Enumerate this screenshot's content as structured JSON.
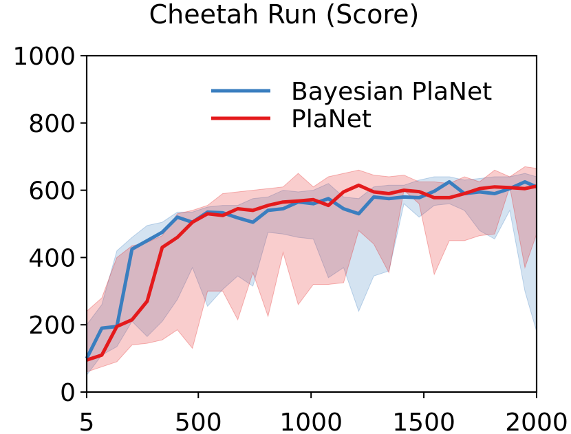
{
  "chart_data": {
    "type": "line",
    "title": "Cheetah Run (Score)",
    "xlabel": "",
    "ylabel": "",
    "xlim": [
      5,
      2000
    ],
    "ylim": [
      0,
      1000
    ],
    "x_ticks": [
      {
        "value": 5,
        "label": "5"
      },
      {
        "value": 500,
        "label": "500"
      },
      {
        "value": 1000,
        "label": "1000"
      },
      {
        "value": 1500,
        "label": "1500"
      },
      {
        "value": 2000,
        "label": "2000"
      }
    ],
    "y_ticks": [
      {
        "value": 0,
        "label": "0"
      },
      {
        "value": 200,
        "label": "200"
      },
      {
        "value": 400,
        "label": "400"
      },
      {
        "value": 600,
        "label": "600"
      },
      {
        "value": 800,
        "label": "800"
      },
      {
        "value": 1000,
        "label": "1000"
      }
    ],
    "grid": false,
    "legend_position": "top-right",
    "x": [
      5,
      72,
      139,
      206,
      273,
      340,
      407,
      474,
      541,
      608,
      675,
      742,
      809,
      876,
      943,
      1010,
      1077,
      1144,
      1211,
      1278,
      1345,
      1412,
      1479,
      1546,
      1613,
      1680,
      1747,
      1814,
      1881,
      1948,
      2000
    ],
    "series": [
      {
        "name": "Bayesian PlaNet",
        "color": "#3a7ebf",
        "values": [
          100,
          190,
          195,
          425,
          450,
          475,
          520,
          505,
          535,
          533,
          518,
          505,
          540,
          545,
          565,
          560,
          575,
          545,
          530,
          580,
          575,
          580,
          578,
          597,
          625,
          590,
          595,
          590,
          605,
          625,
          610
        ],
        "lower": [
          50,
          110,
          135,
          210,
          165,
          210,
          275,
          370,
          255,
          305,
          345,
          315,
          475,
          470,
          460,
          455,
          340,
          370,
          240,
          345,
          360,
          560,
          520,
          555,
          560,
          540,
          480,
          455,
          540,
          300,
          180
        ],
        "upper": [
          200,
          260,
          420,
          460,
          495,
          505,
          535,
          535,
          550,
          555,
          555,
          575,
          580,
          600,
          595,
          600,
          620,
          580,
          575,
          610,
          615,
          615,
          630,
          640,
          640,
          630,
          635,
          640,
          640,
          650,
          640
        ]
      },
      {
        "name": "PlaNet",
        "color": "#e41a1c",
        "values": [
          95,
          110,
          195,
          215,
          270,
          430,
          460,
          505,
          530,
          525,
          545,
          540,
          555,
          565,
          568,
          572,
          555,
          595,
          615,
          595,
          590,
          600,
          596,
          578,
          578,
          590,
          605,
          610,
          608,
          605,
          612
        ],
        "lower": [
          60,
          75,
          90,
          140,
          145,
          155,
          185,
          130,
          300,
          300,
          215,
          355,
          225,
          415,
          260,
          320,
          320,
          325,
          480,
          440,
          355,
          600,
          560,
          350,
          450,
          450,
          465,
          470,
          610,
          370,
          470
        ],
        "upper": [
          240,
          280,
          400,
          435,
          445,
          465,
          530,
          540,
          555,
          590,
          595,
          600,
          605,
          610,
          650,
          610,
          640,
          650,
          660,
          645,
          640,
          645,
          625,
          625,
          620,
          640,
          625,
          660,
          640,
          670,
          665
        ]
      }
    ]
  }
}
